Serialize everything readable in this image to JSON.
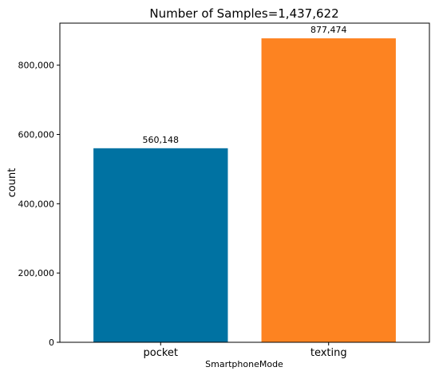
{
  "chart_data": {
    "type": "bar",
    "title": "Number of Samples=1,437,622",
    "xlabel": "SmartphoneMode",
    "ylabel": "count",
    "categories": [
      "pocket",
      "texting"
    ],
    "values": [
      560148,
      877474
    ],
    "data_labels": [
      "560,148",
      "877,474"
    ],
    "colors": [
      "#0072a2",
      "#fd8321"
    ],
    "ylim": [
      0,
      921348
    ],
    "yticks": [
      0,
      200000,
      400000,
      600000,
      800000
    ],
    "ytick_labels": [
      "0",
      "200,000",
      "400,000",
      "600,000",
      "800,000"
    ],
    "grid": false,
    "legend": "none"
  }
}
